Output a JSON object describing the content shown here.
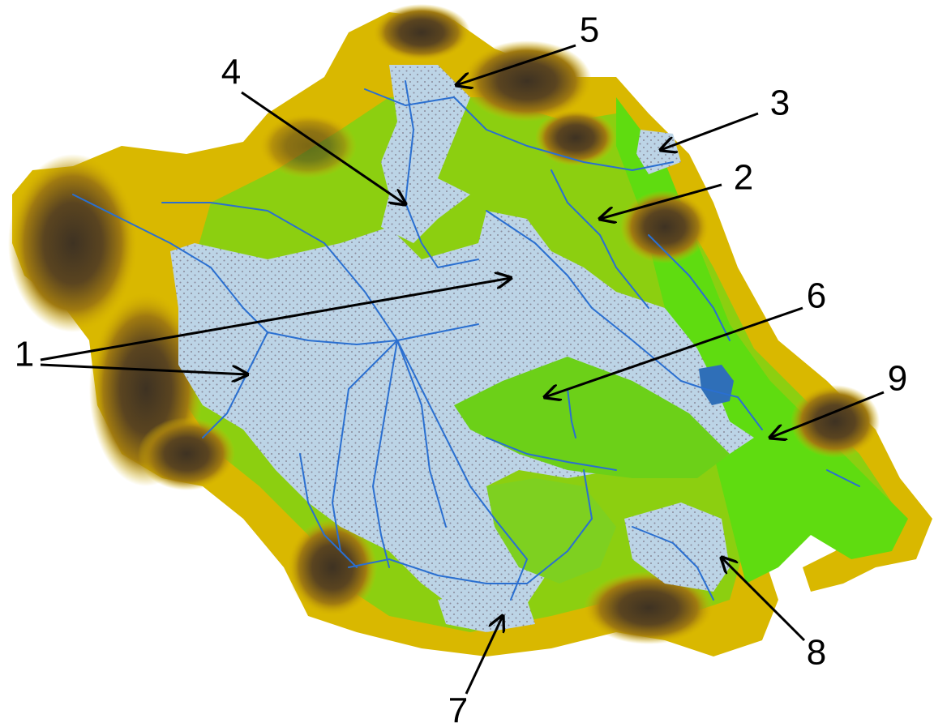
{
  "labels": [
    "1",
    "2",
    "3",
    "4",
    "5",
    "6",
    "7",
    "8",
    "9"
  ]
}
